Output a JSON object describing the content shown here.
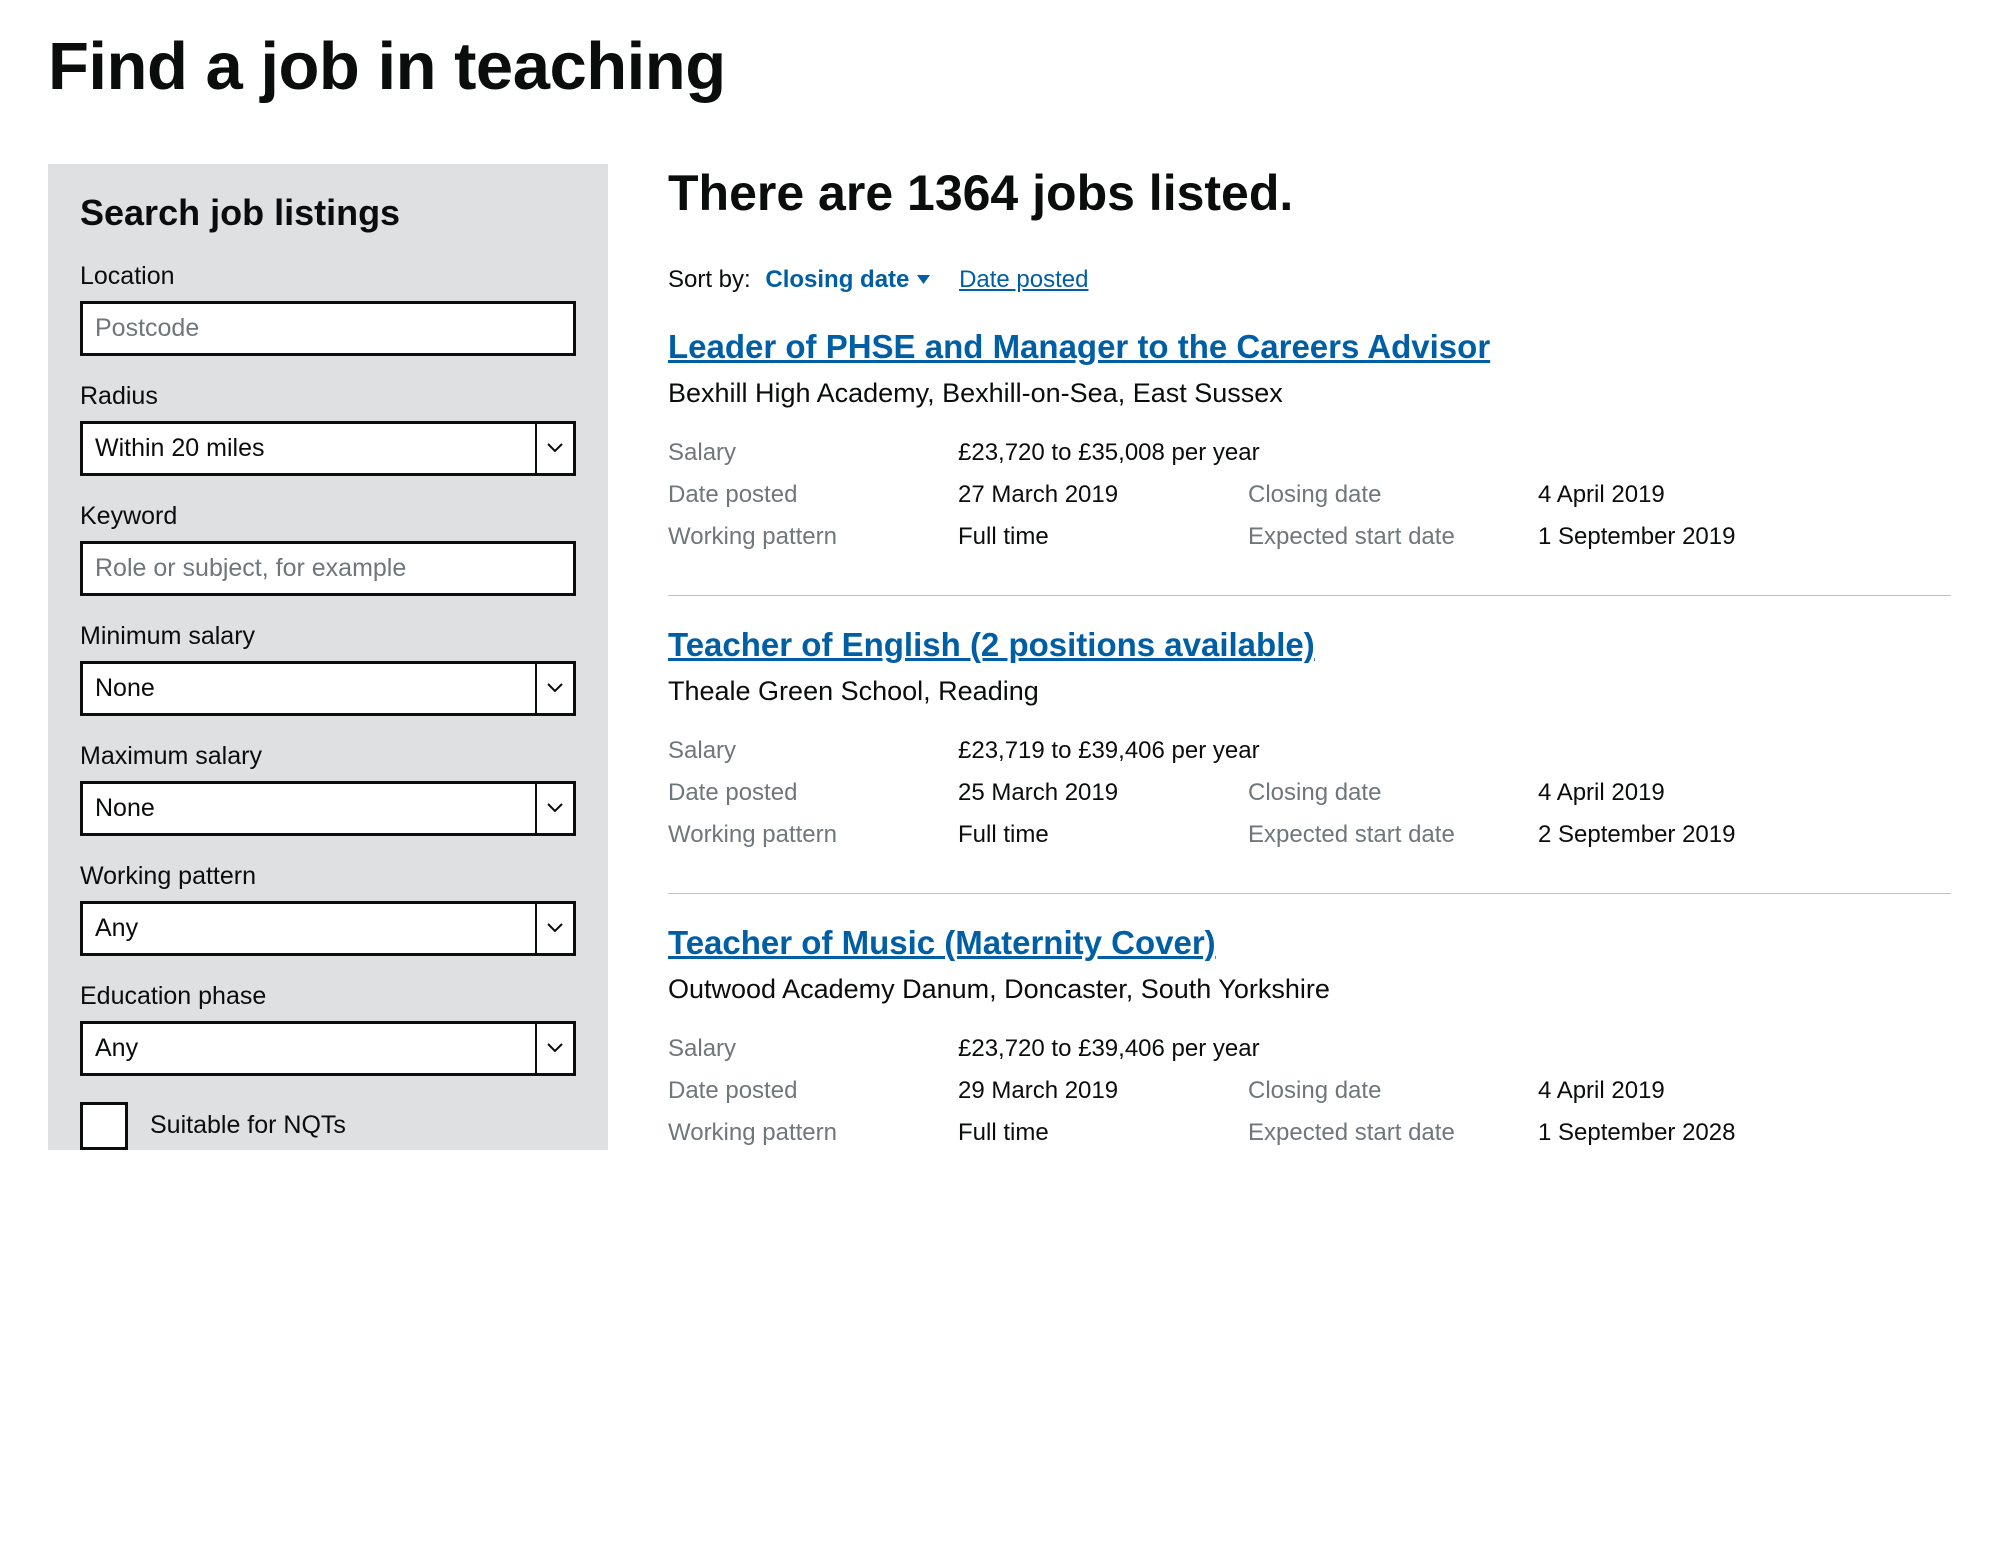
{
  "page": {
    "title": "Find a job in teaching"
  },
  "sidebar": {
    "heading": "Search job listings",
    "location": {
      "label": "Location",
      "placeholder": "Postcode"
    },
    "radius": {
      "label": "Radius",
      "value": "Within 20 miles"
    },
    "keyword": {
      "label": "Keyword",
      "placeholder": "Role or subject, for example"
    },
    "min_salary": {
      "label": "Minimum salary",
      "value": "None"
    },
    "max_salary": {
      "label": "Maximum salary",
      "value": "None"
    },
    "working_pattern": {
      "label": "Working pattern",
      "value": "Any"
    },
    "education_phase": {
      "label": "Education phase",
      "value": "Any"
    },
    "nqt": {
      "label": "Suitable for NQTs"
    }
  },
  "results": {
    "heading": "There are 1364 jobs listed.",
    "sort_label": "Sort by:",
    "sort_active": "Closing date",
    "sort_other": "Date posted"
  },
  "meta_labels": {
    "salary": "Salary",
    "date_posted": "Date posted",
    "working_pattern": "Working pattern",
    "closing_date": "Closing date",
    "expected_start": "Expected start date"
  },
  "jobs": [
    {
      "title": "Leader of PHSE and Manager to the Careers Advisor",
      "location": "Bexhill High Academy, Bexhill-on-Sea, East Sussex",
      "salary": "£23,720 to £35,008 per year",
      "date_posted": "27 March 2019",
      "closing_date": "4 April 2019",
      "working_pattern": "Full time",
      "expected_start": "1 September 2019"
    },
    {
      "title": "Teacher of English (2 positions available)",
      "location": "Theale Green School, Reading",
      "salary": "£23,719 to £39,406 per year",
      "date_posted": "25 March 2019",
      "closing_date": "4 April 2019",
      "working_pattern": "Full time",
      "expected_start": "2 September 2019"
    },
    {
      "title": "Teacher of Music (Maternity Cover)",
      "location": "Outwood Academy Danum, Doncaster, South Yorkshire",
      "salary": "£23,720 to £39,406 per year",
      "date_posted": "29 March 2019",
      "closing_date": "4 April 2019",
      "working_pattern": "Full time",
      "expected_start": "1 September 2028"
    }
  ],
  "colors": {
    "link": "#005ea5",
    "text": "#0b0c0c",
    "muted": "#6f777b",
    "panel_bg": "#dee0e2",
    "border": "#bfc1c3"
  }
}
